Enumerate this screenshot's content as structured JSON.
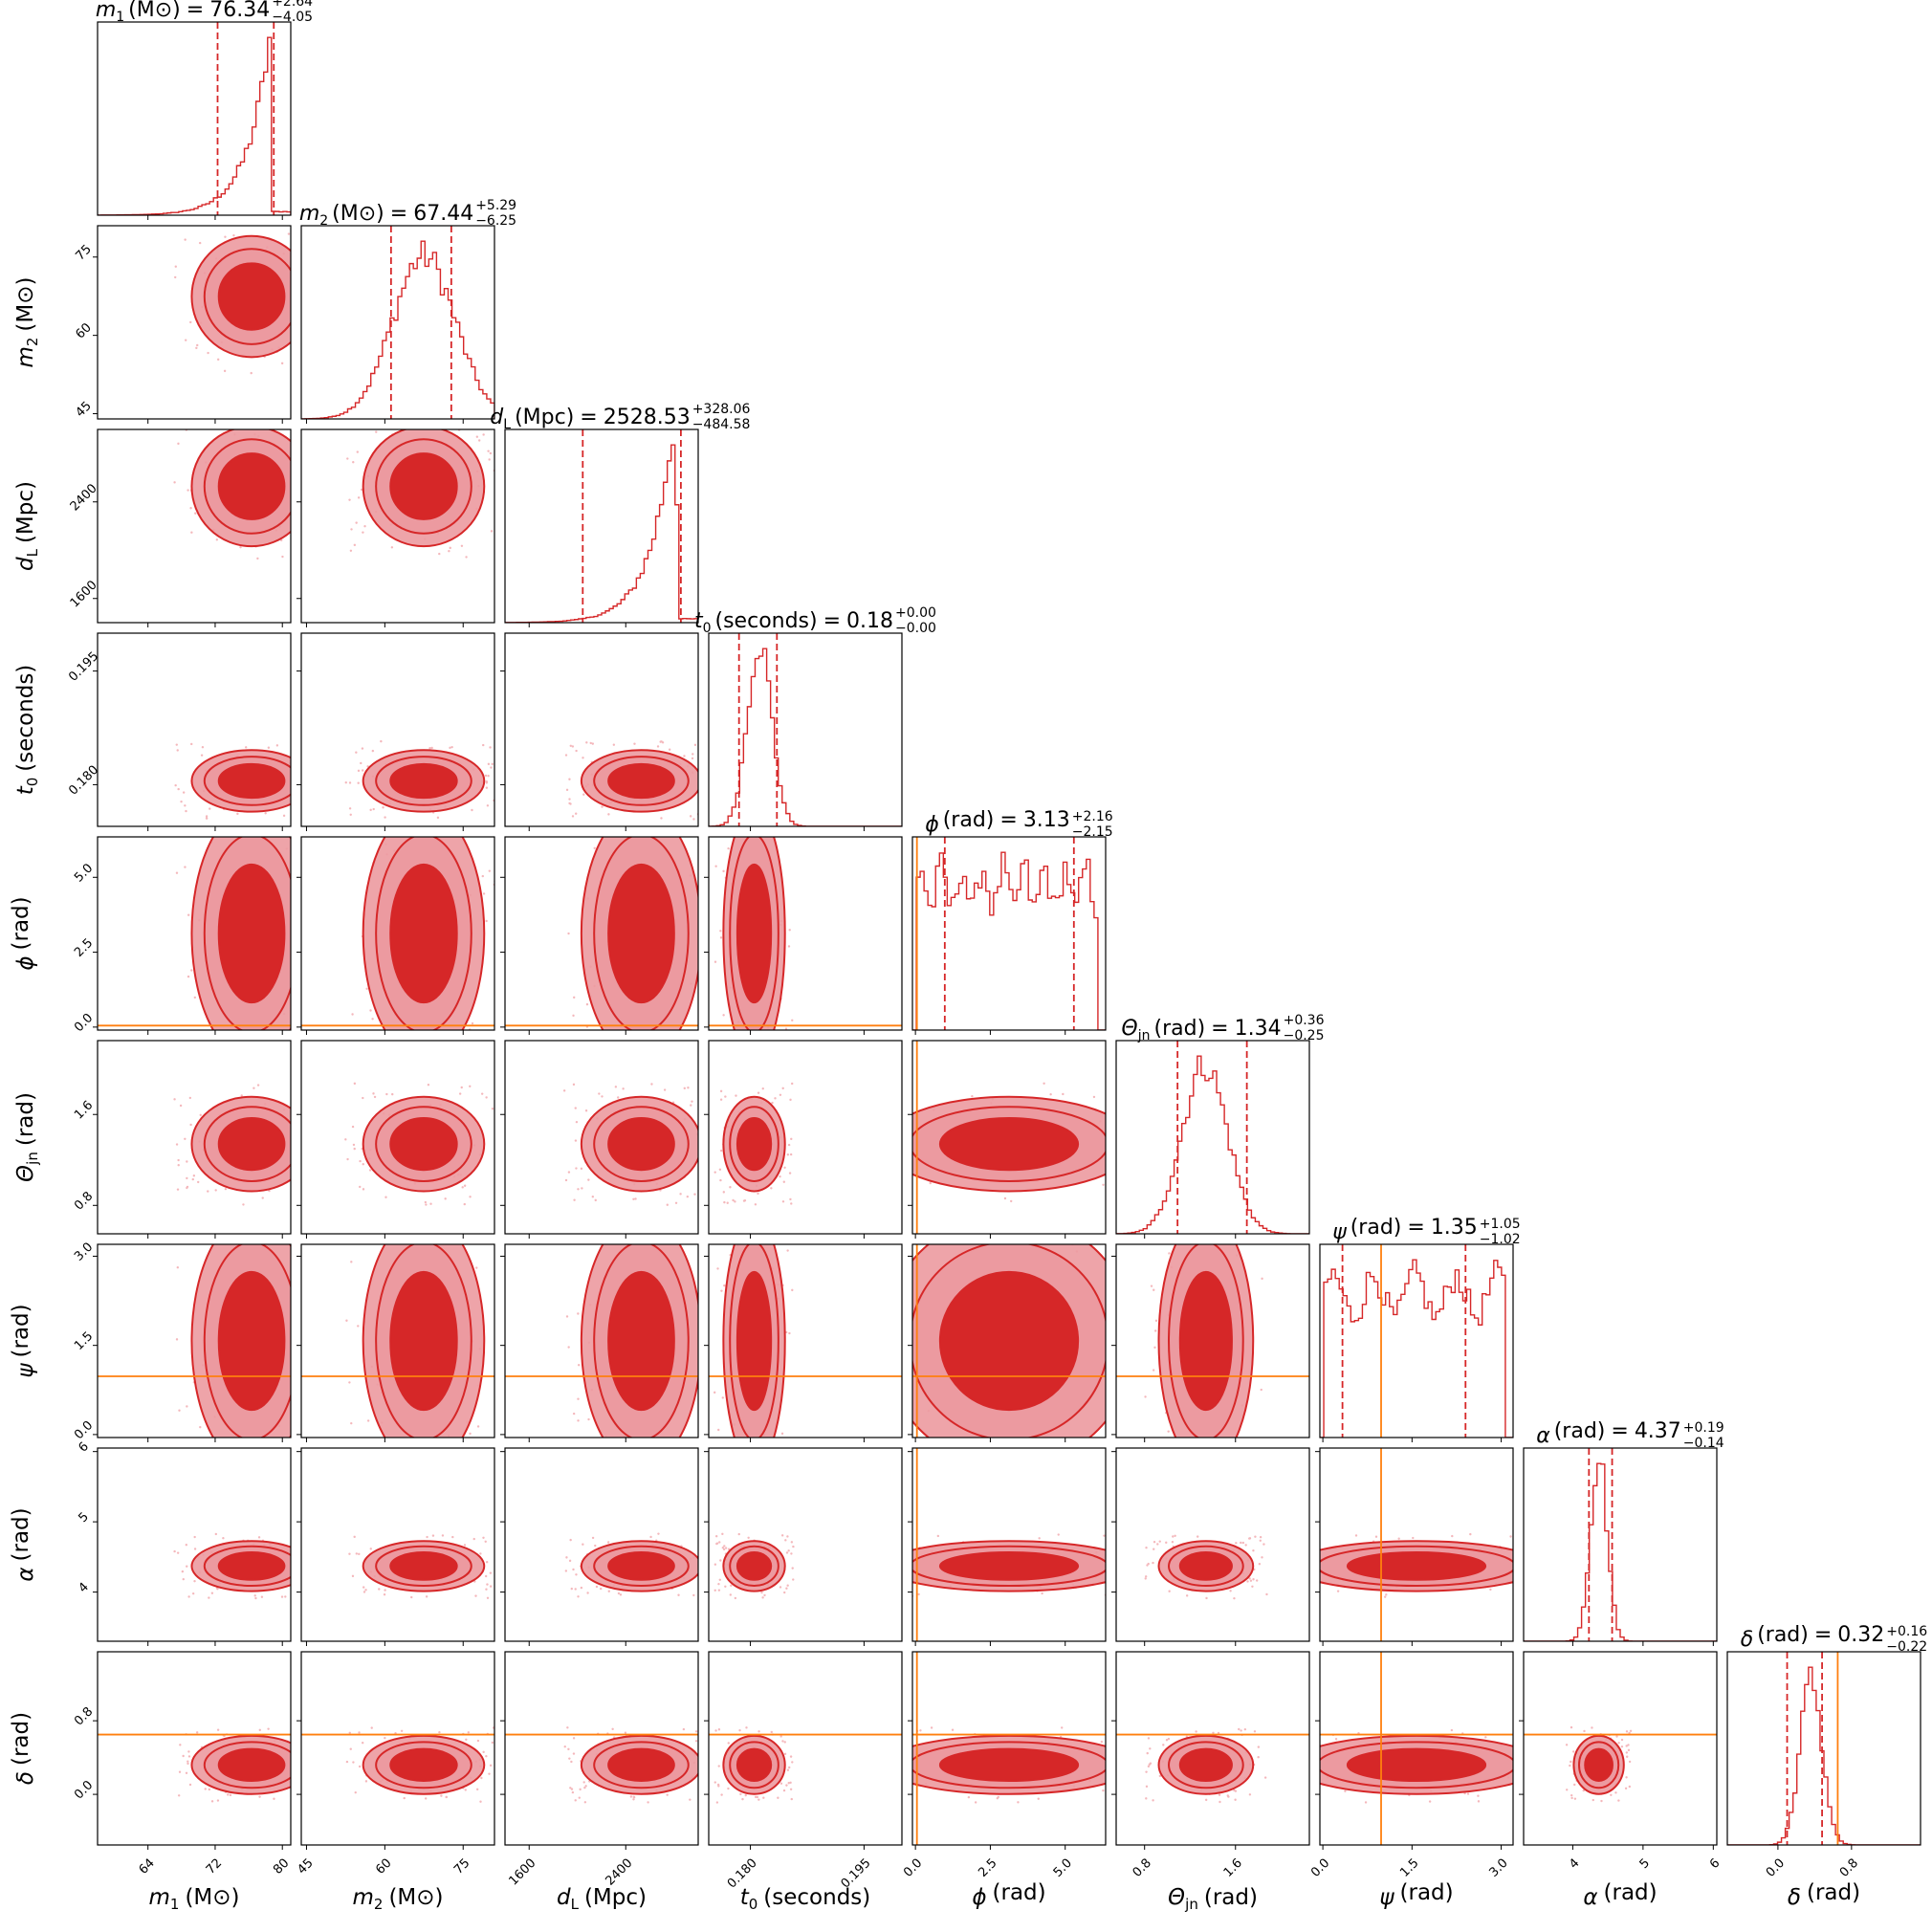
{
  "chart_data": {
    "type": "corner",
    "colors": {
      "posterior": "#d62728",
      "posterior_fill": "#d62728",
      "posterior_outer": "#ec9aa0",
      "truth": "#ff7f0e",
      "scatter": "#f4b8bc"
    },
    "grid": false,
    "parameters": [
      {
        "key": "m1",
        "label_sym": "m",
        "label_sub": "1",
        "label_unit": "(M⊙)",
        "title_value": "76.34",
        "plus": "+2.64",
        "minus": "−4.05",
        "range": [
          58,
          81
        ],
        "ticks": [
          64,
          72,
          80
        ],
        "median": 76.34,
        "lo": 72.29,
        "hi": 78.98,
        "truth": null,
        "hist_center": 78.5,
        "hist_width": 6,
        "hist_shape": "skew-right"
      },
      {
        "key": "m2",
        "label_sym": "m",
        "label_sub": "2",
        "label_unit": "(M⊙)",
        "title_value": "67.44",
        "plus": "+5.29",
        "minus": "−6.25",
        "range": [
          44,
          81
        ],
        "ticks": [
          45,
          60,
          75
        ],
        "median": 67.44,
        "lo": 61.19,
        "hi": 72.73,
        "truth": null,
        "hist_center": 67.5,
        "hist_width": 6,
        "hist_shape": "gauss"
      },
      {
        "key": "dL",
        "label_sym": "d",
        "label_sub": "L",
        "label_unit": "(Mpc)",
        "title_value": "2528.53",
        "plus": "+328.06",
        "minus": "−484.58",
        "range": [
          1400,
          3000
        ],
        "ticks": [
          1600,
          2400
        ],
        "median": 2528.53,
        "lo": 2043.95,
        "hi": 2856.59,
        "truth": null,
        "hist_center": 2780,
        "hist_width": 420,
        "hist_shape": "skew-right"
      },
      {
        "key": "t0",
        "label_sym": "t",
        "label_sub": "0",
        "label_unit": "(seconds)",
        "title_value": "0.18",
        "plus": "+0.00",
        "minus": "−0.00",
        "range": [
          0.1745,
          0.2
        ],
        "ticks": [
          0.18,
          0.195
        ],
        "tick_labels": [
          "0.180",
          "0.195"
        ],
        "median": 0.1805,
        "lo": 0.1785,
        "hi": 0.1835,
        "truth": null,
        "hist_center": 0.1812,
        "hist_width": 0.0016,
        "hist_shape": "gauss"
      },
      {
        "key": "phi",
        "label_sym": "ϕ",
        "label_sub": "",
        "label_unit": "(rad)",
        "title_value": "3.13",
        "plus": "+2.16",
        "minus": "−2.15",
        "range": [
          -0.1,
          6.35
        ],
        "ticks": [
          0.0,
          2.5,
          5.0
        ],
        "tick_labels": [
          "0.0",
          "2.5",
          "5.0"
        ],
        "median": 3.13,
        "lo": 0.98,
        "hi": 5.29,
        "truth": 0.05,
        "hist_center": 3.1,
        "hist_width": 3.0,
        "hist_shape": "flat"
      },
      {
        "key": "theta_jn",
        "label_sym": "Θ",
        "label_sub": "jn",
        "label_unit": "(rad)",
        "title_value": "1.34",
        "plus": "+0.36",
        "minus": "−0.25",
        "range": [
          0.55,
          2.25
        ],
        "ticks": [
          0.8,
          1.6
        ],
        "tick_labels": [
          "0.8",
          "1.6"
        ],
        "median": 1.34,
        "lo": 1.09,
        "hi": 1.7,
        "truth": null,
        "hist_center": 1.33,
        "hist_width": 0.2,
        "hist_shape": "gauss"
      },
      {
        "key": "psi",
        "label_sym": "ψ",
        "label_sub": "",
        "label_unit": "(rad)",
        "title_value": "1.35",
        "plus": "+1.05",
        "minus": "−1.02",
        "range": [
          -0.05,
          3.2
        ],
        "ticks": [
          0.0,
          1.5,
          3.0
        ],
        "tick_labels": [
          "0.0",
          "1.5",
          "3.0"
        ],
        "median": 1.35,
        "lo": 0.33,
        "hi": 2.4,
        "truth": 0.98,
        "hist_center": 1.5,
        "hist_width": 1.5,
        "hist_shape": "flat"
      },
      {
        "key": "alpha",
        "label_sym": "α",
        "label_sub": "",
        "label_unit": "(rad)",
        "title_value": "4.37",
        "plus": "+0.19",
        "minus": "−0.14",
        "range": [
          3.3,
          6.05
        ],
        "ticks": [
          4,
          5,
          6
        ],
        "tick_labels": [
          "4",
          "5",
          "6"
        ],
        "median": 4.37,
        "lo": 4.23,
        "hi": 4.56,
        "truth": null,
        "hist_center": 4.37,
        "hist_width": 0.12,
        "hist_shape": "gauss"
      },
      {
        "key": "delta",
        "label_sym": "δ",
        "label_sub": "",
        "label_unit": "(rad)",
        "title_value": "0.32",
        "plus": "+0.16",
        "minus": "−0.22",
        "range": [
          -0.55,
          1.55
        ],
        "ticks": [
          0.0,
          0.8
        ],
        "tick_labels": [
          "0.0",
          "0.8"
        ],
        "median": 0.32,
        "lo": 0.1,
        "hi": 0.48,
        "truth": 0.65,
        "hist_center": 0.36,
        "hist_width": 0.12,
        "hist_shape": "gauss"
      }
    ]
  }
}
